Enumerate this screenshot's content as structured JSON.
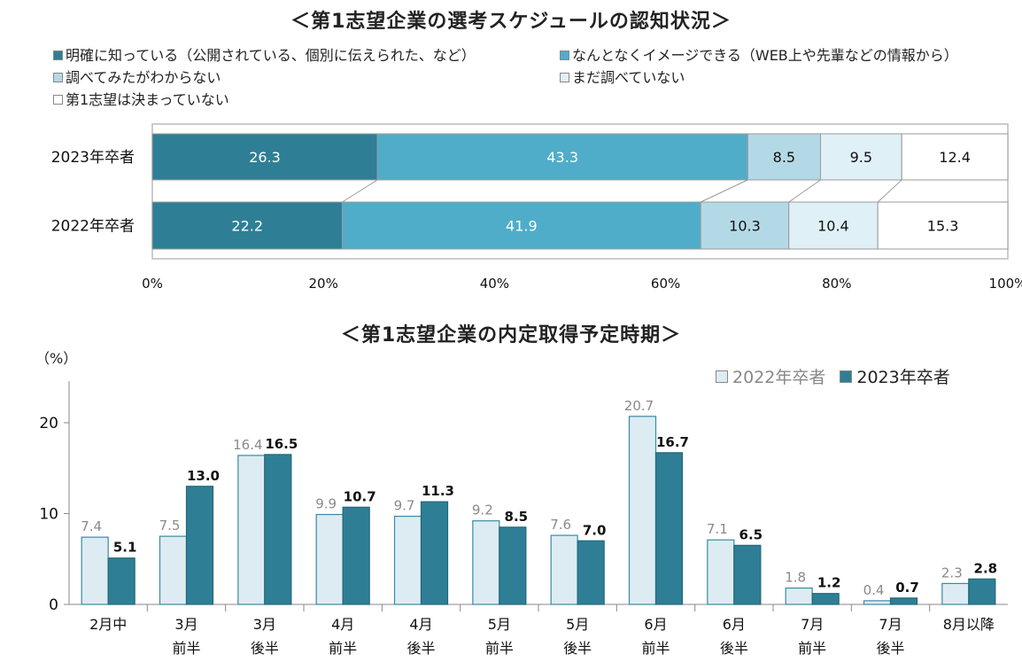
{
  "chart_data": [
    {
      "type": "bar",
      "orientation": "horizontal",
      "stacked": true,
      "title": "＜第1志望企業の選考スケジュールの認知状況＞",
      "categories": [
        "2023年卒者",
        "2022年卒者"
      ],
      "series": [
        {
          "name": "明確に知っている（公開されている、個別に伝えられた、など）",
          "values": [
            26.3,
            22.2
          ],
          "color": "#2e7f96"
        },
        {
          "name": "なんとなくイメージできる（WEB上や先輩などの情報から）",
          "values": [
            43.3,
            41.9
          ],
          "color": "#4fadc9"
        },
        {
          "name": "調べてみたがわからない",
          "values": [
            8.5,
            10.3
          ],
          "color": "#b4d9e6"
        },
        {
          "name": "まだ調べていない",
          "values": [
            9.5,
            10.4
          ],
          "color": "#dff0f6"
        },
        {
          "name": "第1志望は決まっていない",
          "values": [
            12.4,
            15.3
          ],
          "color": "#ffffff"
        }
      ],
      "value_labels": [
        [
          "26.3",
          "43.3",
          "8.5",
          "9.5",
          "12.4"
        ],
        [
          "22.2",
          "41.9",
          "10.3",
          "10.4",
          "15.3"
        ]
      ],
      "xlim": [
        0,
        100
      ],
      "xticks": [
        "0%",
        "20%",
        "40%",
        "60%",
        "80%",
        "100%"
      ],
      "legend_position": "top"
    },
    {
      "type": "bar",
      "title": "＜第1志望企業の内定取得予定時期＞",
      "ylabel": "（%）",
      "categories": [
        [
          "2月中"
        ],
        [
          "3月",
          "前半"
        ],
        [
          "3月",
          "後半"
        ],
        [
          "4月",
          "前半"
        ],
        [
          "4月",
          "後半"
        ],
        [
          "5月",
          "前半"
        ],
        [
          "5月",
          "後半"
        ],
        [
          "6月",
          "前半"
        ],
        [
          "6月",
          "後半"
        ],
        [
          "7月",
          "前半"
        ],
        [
          "7月",
          "後半"
        ],
        [
          "8月以降"
        ]
      ],
      "series": [
        {
          "name": "2022年卒者",
          "color": "#dcecf2",
          "values": [
            7.4,
            7.5,
            16.4,
            9.9,
            9.7,
            9.2,
            7.6,
            20.7,
            7.1,
            1.8,
            0.4,
            2.3
          ],
          "labels": [
            "7.4",
            "7.5",
            "16.4",
            "9.9",
            "9.7",
            "9.2",
            "7.6",
            "20.7",
            "7.1",
            "1.8",
            "0.4",
            "2.3"
          ]
        },
        {
          "name": "2023年卒者",
          "color": "#2e7f96",
          "values": [
            5.1,
            13.0,
            16.5,
            10.7,
            11.3,
            8.5,
            7.0,
            16.7,
            6.5,
            1.2,
            0.7,
            2.8
          ],
          "labels": [
            "5.1",
            "13.0",
            "16.5",
            "10.7",
            "11.3",
            "8.5",
            "7.0",
            "16.7",
            "6.5",
            "1.2",
            "0.7",
            "2.8"
          ]
        }
      ],
      "ylim": [
        0,
        24
      ],
      "yticks": [
        "0",
        "10",
        "20"
      ],
      "grid": false,
      "legend_position": "top-right"
    }
  ]
}
